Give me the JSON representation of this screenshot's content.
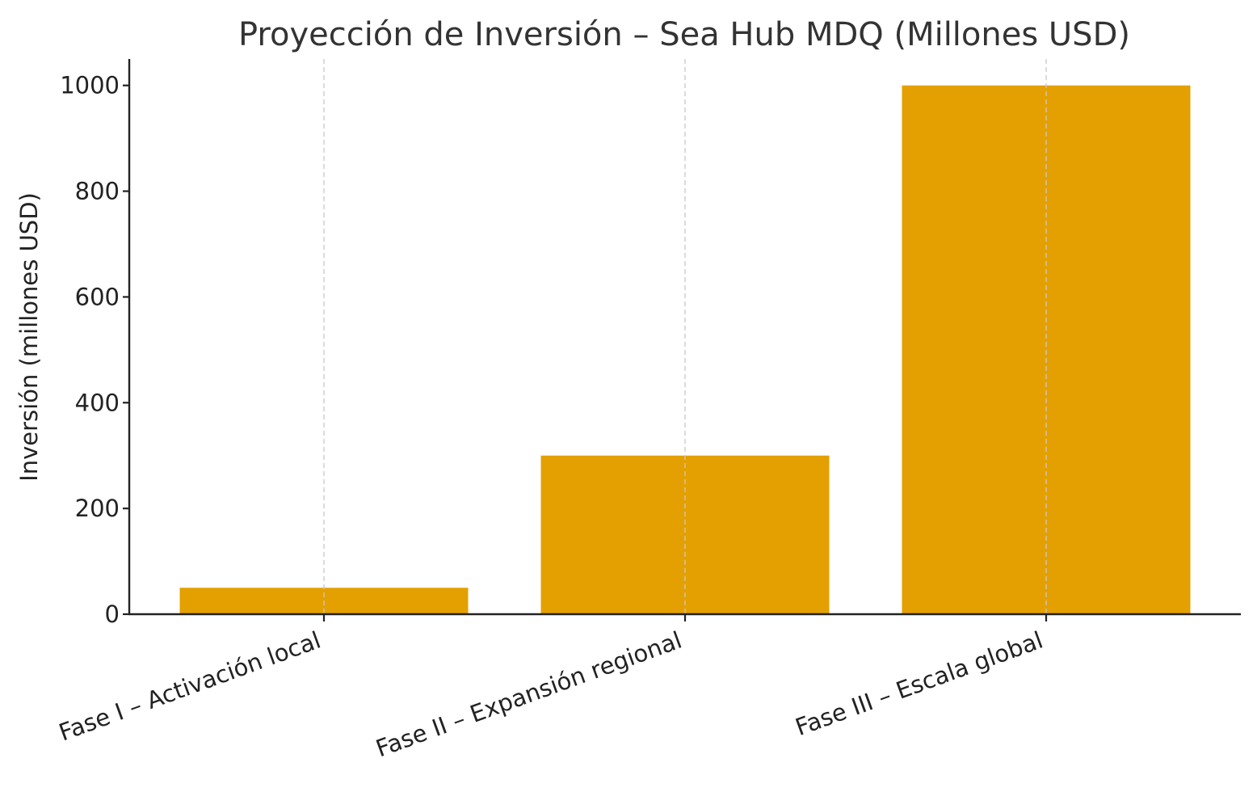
{
  "chart_data": {
    "type": "bar",
    "title": "Proyección de Inversión – Sea Hub MDQ (Millones USD)",
    "xlabel": "",
    "ylabel": "Inversión (millones USD)",
    "categories": [
      "Fase I – Activación local",
      "Fase II – Expansión regional",
      "Fase III – Escala global"
    ],
    "values": [
      50,
      300,
      1000
    ],
    "ylim": [
      0,
      1050
    ],
    "yticks": [
      0,
      200,
      400,
      600,
      800,
      1000
    ],
    "grid": "x-dashed",
    "bar_color": "#E3A000"
  }
}
